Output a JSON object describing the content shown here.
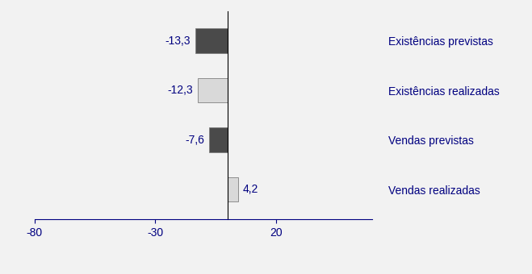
{
  "chart_data": {
    "type": "bar",
    "orientation": "horizontal",
    "categories": [
      "Existências previstas",
      "Existências realizadas",
      "Vendas previstas",
      "Vendas realizadas"
    ],
    "values": [
      -13.3,
      -12.3,
      -7.6,
      4.2
    ],
    "value_labels": [
      "-13,3",
      "-12,3",
      "-7,6",
      "4,2"
    ],
    "colors": [
      "#4a4a4a",
      "#d9d9d9",
      "#4a4a4a",
      "#d9d9d9"
    ],
    "xlim": [
      -80,
      60
    ],
    "xticks": [
      -80,
      -30,
      20
    ],
    "data_labels": true,
    "grid": false
  }
}
